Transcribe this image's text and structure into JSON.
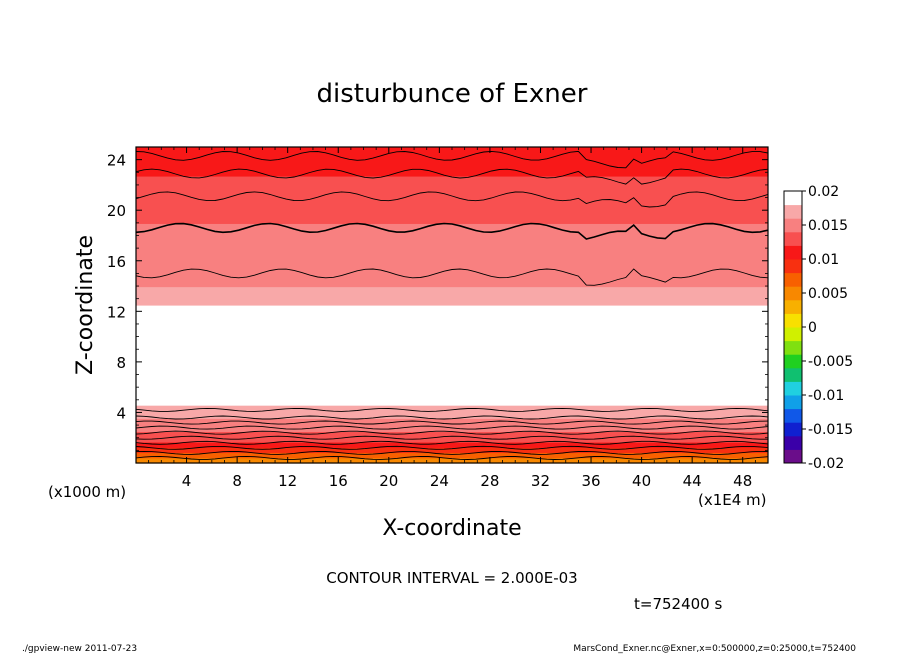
{
  "chart_data": {
    "type": "heatmap",
    "title": "disturbunce of Exner",
    "xlabel": "X-coordinate",
    "ylabel": "Z-coordinate",
    "x_unit_label": "(x1E4 m)",
    "y_unit_label": "(x1000 m)",
    "xlim": [
      0,
      50
    ],
    "ylim": [
      0,
      25
    ],
    "x_ticks": [
      "4",
      "8",
      "12",
      "16",
      "20",
      "24",
      "28",
      "32",
      "36",
      "40",
      "44",
      "48"
    ],
    "y_ticks": [
      "4",
      "8",
      "12",
      "16",
      "20",
      "24"
    ],
    "x_tick_values": [
      4,
      8,
      12,
      16,
      20,
      24,
      28,
      32,
      36,
      40,
      44,
      48
    ],
    "y_tick_values": [
      4,
      8,
      12,
      16,
      20,
      24
    ],
    "colorbar": {
      "labels": [
        "0.02",
        "0.015",
        "0.01",
        "0.005",
        "0",
        "-0.005",
        "-0.01",
        "-0.015",
        "-0.02"
      ],
      "values": [
        0.02,
        0.015,
        0.01,
        0.005,
        0,
        -0.005,
        -0.01,
        -0.015,
        -0.02
      ],
      "range": [
        -0.02,
        0.02
      ]
    },
    "contour_interval_text": "CONTOUR INTERVAL = 2.000E-03",
    "time_text": "t=752400 s",
    "field_profile_by_height": {
      "z": [
        0.2,
        1,
        2,
        3,
        4,
        4.5,
        6,
        8,
        10,
        11,
        12,
        13,
        14,
        15,
        16,
        17,
        18,
        19,
        20,
        21,
        22,
        23,
        24,
        25
      ],
      "value": [
        0.005,
        0.009,
        0.013,
        0.015,
        0.017,
        0.018,
        0.019,
        0.0195,
        0.0195,
        0.019,
        0.0185,
        0.0175,
        0.016,
        0.0152,
        0.0148,
        0.0145,
        0.0142,
        0.014,
        0.0138,
        0.0132,
        0.0125,
        0.0118,
        0.0112,
        0.0108
      ]
    }
  },
  "footer": {
    "left": "./gpview-new   2011-07-23",
    "right": "MarsCond_Exner.nc@Exner,x=0:500000,z=0:25000,t=752400"
  }
}
